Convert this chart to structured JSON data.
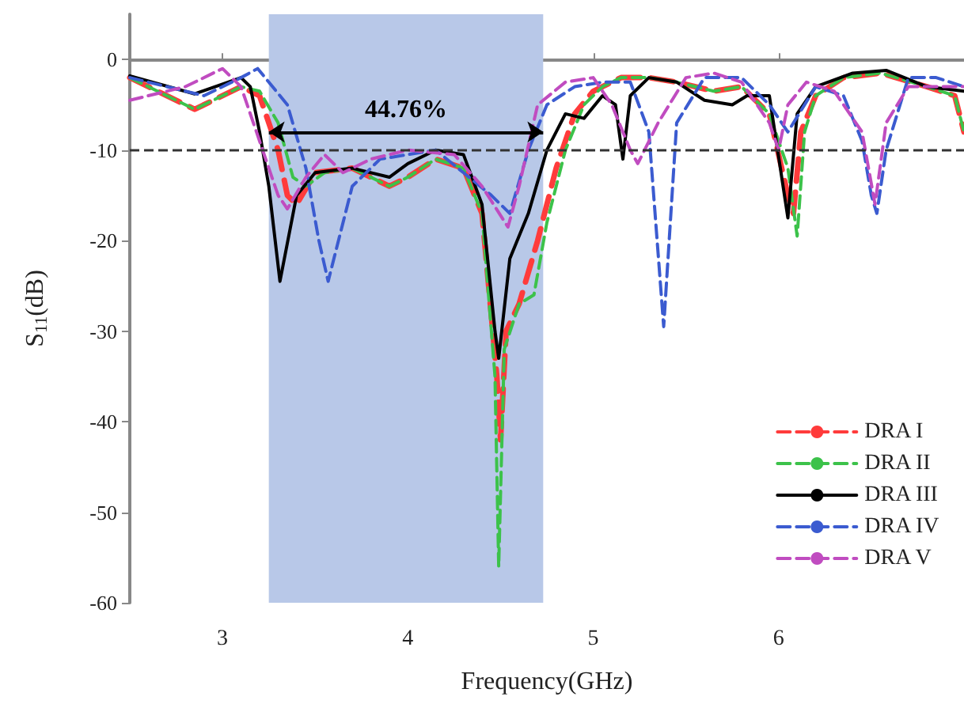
{
  "chart_data": {
    "type": "line",
    "xlabel": "Frequency(GHz)",
    "ylabel": "S$_{11}$(dB)",
    "xlim": [
      2.5,
      7
    ],
    "xticks": [
      3,
      4,
      5,
      6
    ],
    "ylim": [
      -60,
      5
    ],
    "yticks": [
      -60,
      -50,
      -40,
      -30,
      -20,
      -10,
      0
    ],
    "grid": false,
    "legend": "bottom right",
    "marker": "none",
    "ref_lines": [
      {
        "axis": "y",
        "value": -10,
        "color": "#333333",
        "line_style": "dashed"
      }
    ],
    "bands": [
      {
        "axis": "x",
        "from": 3.25,
        "to": 4.73,
        "color": "#b8c8e8",
        "label": "44.76%"
      }
    ],
    "series": [
      {
        "name": "DRA I",
        "color": "#ff3b3b",
        "line_style": "dashed",
        "x": [
          2.5,
          2.85,
          3.1,
          3.2,
          3.3,
          3.35,
          3.4,
          3.5,
          3.7,
          3.9,
          4.0,
          4.15,
          4.3,
          4.4,
          4.48,
          4.5,
          4.53,
          4.6,
          4.7,
          4.8,
          4.9,
          5.0,
          5.15,
          5.3,
          5.45,
          5.65,
          5.8,
          5.95,
          6.05,
          6.08,
          6.12,
          6.2,
          6.35,
          6.55,
          6.8,
          6.95,
          7.0
        ],
        "values": [
          -2,
          -5.5,
          -3,
          -4,
          -10,
          -15,
          -16,
          -12.5,
          -12,
          -14,
          -13,
          -11,
          -12,
          -17,
          -35,
          -42,
          -30,
          -27,
          -20,
          -12,
          -6,
          -3.5,
          -2,
          -2,
          -2.5,
          -3.5,
          -3,
          -6,
          -15,
          -17,
          -8,
          -4,
          -2,
          -1.5,
          -3,
          -4,
          -8
        ]
      },
      {
        "name": "DRA II",
        "color": "#3cc24a",
        "line_style": "dashed",
        "x": [
          2.5,
          2.85,
          3.1,
          3.2,
          3.3,
          3.38,
          3.45,
          3.55,
          3.7,
          3.9,
          4.0,
          4.15,
          4.3,
          4.4,
          4.47,
          4.49,
          4.52,
          4.6,
          4.68,
          4.75,
          4.85,
          4.95,
          5.05,
          5.15,
          5.3,
          5.45,
          5.65,
          5.8,
          5.95,
          6.05,
          6.1,
          6.14,
          6.2,
          6.35,
          6.55,
          6.8,
          6.95,
          7.0
        ],
        "values": [
          -2,
          -5.5,
          -3,
          -3.5,
          -7,
          -13,
          -14,
          -12.5,
          -12,
          -14,
          -13,
          -11,
          -12,
          -17,
          -35,
          -56,
          -32,
          -27,
          -26,
          -18,
          -10,
          -5,
          -3,
          -2,
          -2,
          -2.5,
          -3.5,
          -3,
          -6,
          -12,
          -19.5,
          -8,
          -4,
          -2,
          -1.5,
          -3,
          -4,
          -8
        ]
      },
      {
        "name": "DRA III",
        "color": "#000000",
        "line_style": "solid",
        "x": [
          2.5,
          2.85,
          3.1,
          3.15,
          3.2,
          3.25,
          3.31,
          3.4,
          3.5,
          3.7,
          3.9,
          4.0,
          4.15,
          4.3,
          4.4,
          4.47,
          4.49,
          4.55,
          4.65,
          4.75,
          4.85,
          4.95,
          5.05,
          5.12,
          5.16,
          5.2,
          5.3,
          5.45,
          5.6,
          5.75,
          5.83,
          5.95,
          6.05,
          6.1,
          6.2,
          6.4,
          6.58,
          6.8,
          7.0
        ],
        "values": [
          -1.8,
          -3.8,
          -2,
          -3,
          -8,
          -14,
          -24.5,
          -15,
          -12.5,
          -12,
          -13,
          -11.5,
          -10,
          -10.5,
          -16,
          -30,
          -33,
          -22,
          -17,
          -10,
          -6,
          -6.5,
          -4,
          -5,
          -11,
          -4,
          -2,
          -2.5,
          -4.5,
          -5,
          -4,
          -4,
          -17.5,
          -6,
          -3,
          -1.5,
          -1.2,
          -3,
          -3.5
        ]
      },
      {
        "name": "DRA IV",
        "color": "#3b5bd0",
        "line_style": "dashed",
        "x": [
          2.5,
          2.9,
          3.1,
          3.19,
          3.35,
          3.45,
          3.52,
          3.57,
          3.7,
          3.85,
          4.0,
          4.15,
          4.3,
          4.45,
          4.55,
          4.65,
          4.75,
          4.9,
          5.05,
          5.2,
          5.3,
          5.38,
          5.45,
          5.6,
          5.8,
          5.95,
          6.05,
          6.2,
          6.35,
          6.45,
          6.5,
          6.53,
          6.58,
          6.7,
          6.85,
          7.0
        ],
        "values": [
          -2,
          -4,
          -2,
          -1,
          -5,
          -12,
          -20,
          -24.5,
          -14,
          -11,
          -10.5,
          -10,
          -12.5,
          -15,
          -17,
          -10,
          -5,
          -3,
          -2.5,
          -2.5,
          -8,
          -29.5,
          -7,
          -2,
          -2,
          -5,
          -8,
          -3,
          -4,
          -9,
          -15,
          -17,
          -10,
          -2,
          -2,
          -3
        ]
      },
      {
        "name": "DRA V",
        "color": "#c04cc0",
        "line_style": "dashed",
        "x": [
          2.5,
          2.8,
          3.0,
          3.1,
          3.2,
          3.3,
          3.35,
          3.45,
          3.55,
          3.65,
          3.8,
          4.0,
          4.25,
          4.4,
          4.54,
          4.6,
          4.7,
          4.85,
          5.0,
          5.1,
          5.2,
          5.24,
          5.35,
          5.5,
          5.65,
          5.8,
          5.95,
          6.0,
          6.05,
          6.15,
          6.3,
          6.45,
          6.52,
          6.58,
          6.7,
          7.0
        ],
        "values": [
          -4.5,
          -3,
          -1,
          -3,
          -9,
          -15,
          -16.5,
          -13,
          -10.5,
          -12.5,
          -11,
          -10,
          -10.5,
          -14,
          -18.5,
          -14,
          -5,
          -2.5,
          -2,
          -5,
          -10,
          -11.5,
          -7,
          -2,
          -1.5,
          -2.5,
          -7,
          -10,
          -5,
          -2.5,
          -3.5,
          -8,
          -16,
          -7,
          -3,
          -3
        ]
      }
    ]
  }
}
